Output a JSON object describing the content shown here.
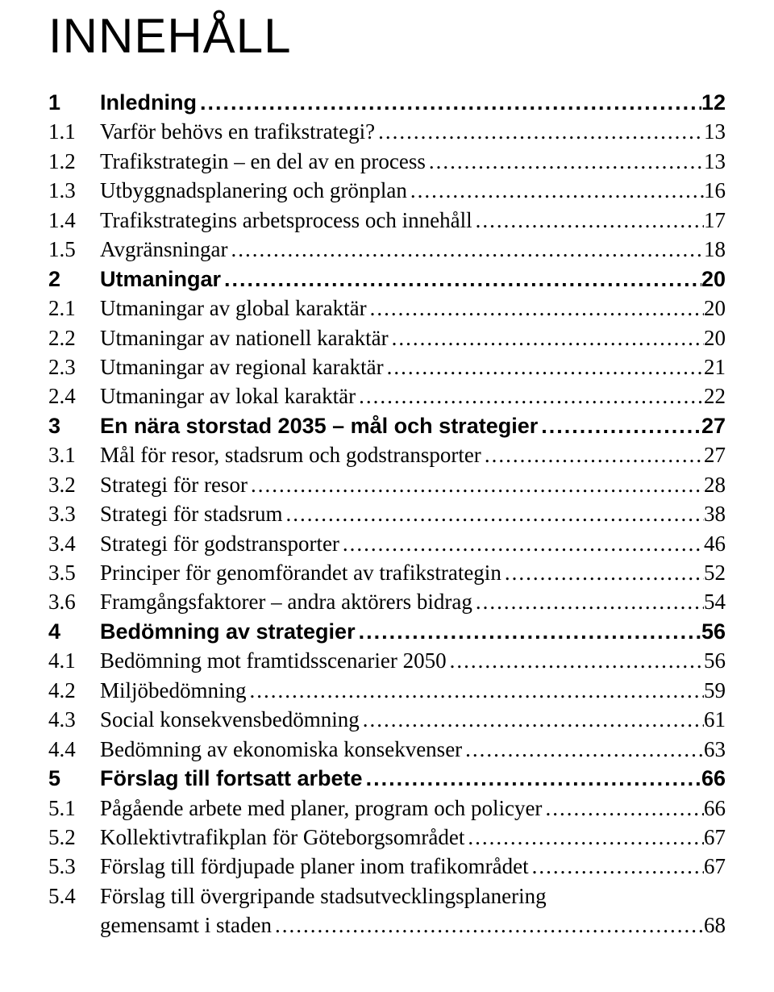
{
  "title": "INNEHÅLL",
  "toc": [
    {
      "num": "1",
      "text": "Inledning",
      "page": "12",
      "bold": true
    },
    {
      "num": "1.1",
      "text": "Varför behövs en trafikstrategi?",
      "page": "13",
      "bold": false
    },
    {
      "num": "1.2",
      "text": "Trafikstrategin – en del av en process",
      "page": "13",
      "bold": false
    },
    {
      "num": "1.3",
      "text": "Utbyggnadsplanering och grönplan",
      "page": "16",
      "bold": false
    },
    {
      "num": "1.4",
      "text": "Trafikstrategins arbetsprocess och innehåll",
      "page": "17",
      "bold": false
    },
    {
      "num": "1.5",
      "text": "Avgränsningar",
      "page": "18",
      "bold": false
    },
    {
      "num": "2",
      "text": "Utmaningar",
      "page": "20",
      "bold": true
    },
    {
      "num": "2.1",
      "text": "Utmaningar av global karaktär",
      "page": "20",
      "bold": false
    },
    {
      "num": "2.2",
      "text": "Utmaningar av nationell karaktär",
      "page": "20",
      "bold": false
    },
    {
      "num": "2.3",
      "text": "Utmaningar av regional karaktär",
      "page": "21",
      "bold": false
    },
    {
      "num": "2.4",
      "text": "Utmaningar av lokal karaktär",
      "page": "22",
      "bold": false
    },
    {
      "num": "3",
      "text": "En nära storstad 2035 – mål och strategier",
      "page": "27",
      "bold": true
    },
    {
      "num": "3.1",
      "text": "Mål för resor, stadsrum och godstransporter",
      "page": "27",
      "bold": false
    },
    {
      "num": "3.2",
      "text": "Strategi för resor",
      "page": "28",
      "bold": false
    },
    {
      "num": "3.3",
      "text": "Strategi för stadsrum",
      "page": "38",
      "bold": false
    },
    {
      "num": "3.4",
      "text": "Strategi för godstransporter",
      "page": "46",
      "bold": false
    },
    {
      "num": "3.5",
      "text": "Principer för genomförandet av trafikstrategin",
      "page": "52",
      "bold": false
    },
    {
      "num": "3.6",
      "text": "Framgångsfaktorer – andra aktörers bidrag",
      "page": "54",
      "bold": false
    },
    {
      "num": "4",
      "text": "Bedömning av strategier",
      "page": "56",
      "bold": true
    },
    {
      "num": "4.1",
      "text": "Bedömning mot framtidsscenarier 2050",
      "page": "56",
      "bold": false
    },
    {
      "num": "4.2",
      "text": "Miljöbedömning",
      "page": "59",
      "bold": false
    },
    {
      "num": "4.3",
      "text": "Social konsekvensbedömning",
      "page": "61",
      "bold": false
    },
    {
      "num": "4.4",
      "text": "Bedömning av ekonomiska konsekvenser",
      "page": "63",
      "bold": false
    },
    {
      "num": "5",
      "text": "Förslag till fortsatt arbete",
      "page": "66",
      "bold": true
    },
    {
      "num": "5.1",
      "text": "Pågående arbete med planer, program och policyer",
      "page": "66",
      "bold": false
    },
    {
      "num": "5.2",
      "text": "Kollektivtrafikplan för Göteborgsområdet",
      "page": "67",
      "bold": false
    },
    {
      "num": "5.3",
      "text": "Förslag till fördjupade planer inom trafikområdet",
      "page": "67",
      "bold": false
    },
    {
      "num": "5.4",
      "text": "Förslag till övergripande stadsutvecklingsplanering",
      "cont": "gemensamt i staden",
      "page": "68",
      "bold": false
    }
  ]
}
